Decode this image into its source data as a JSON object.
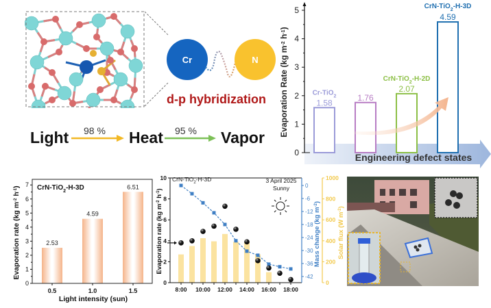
{
  "panel_a": {
    "atoms": {
      "metal_label": "Cr",
      "nonmetal_label": "N",
      "cr_color": "#1565c0",
      "n_color": "#f9c22e"
    },
    "hybridization_label": "d-p hybridization",
    "flow": {
      "step1": "Light",
      "eff1": "98 %",
      "step2": "Heat",
      "eff2": "95 %",
      "step3": "Vapor",
      "arrow1_color": "#f2b824",
      "arrow2_color": "#7cc057"
    }
  },
  "chart_data": [
    {
      "type": "bar",
      "title": "",
      "xlabel": "Engineering defect states",
      "ylabel": "Evaporation Rate (kg m⁻² h⁻¹)",
      "ylabel_main": "Evaporation Rate (kg m",
      "ylabel_sup1": "-2",
      "ylabel_mid": " h",
      "ylabel_sup2": "-1",
      "ylabel_end": ")",
      "ylim": [
        0,
        5
      ],
      "yticks": [
        "0",
        "1",
        "2",
        "3",
        "4",
        "5"
      ],
      "categories": [
        "Cr-TiO2",
        "",
        "CrN-TiO2-H-2D",
        "CrN-TiO2-H-3D"
      ],
      "category_labels": [
        {
          "pre": "Cr-TiO",
          "sub": "2",
          "post": ""
        },
        {
          "pre": "",
          "sub": "",
          "post": ""
        },
        {
          "pre": "CrN-TiO",
          "sub": "2",
          "post": "-H-2D"
        },
        {
          "pre": "CrN-TiO",
          "sub": "2",
          "post": "-H-3D"
        }
      ],
      "values": [
        1.58,
        1.76,
        2.07,
        4.59
      ],
      "value_labels": [
        "1.58",
        "1.76",
        "2.07",
        "4.59"
      ],
      "colors": [
        "#9a9ad8",
        "#b77cc4",
        "#8cbf45",
        "#1f6fb0"
      ],
      "grid": false
    },
    {
      "type": "bar",
      "title": "",
      "annotation": {
        "pre": "CrN-TiO",
        "sub": "2",
        "post": "-H-3D"
      },
      "xlabel": "Light intensity (sun)",
      "ylabel_main": "Evaporation rate (kg m",
      "ylabel_sup1": "-2",
      "ylabel_mid": " h",
      "ylabel_sup2": "-1",
      "ylabel_end": ")",
      "ylim": [
        0,
        7.4
      ],
      "yticks": [
        "0",
        "1",
        "2",
        "3",
        "4",
        "5",
        "6",
        "7"
      ],
      "categories": [
        "0.5",
        "1.0",
        "1.5"
      ],
      "values": [
        2.53,
        4.59,
        6.51
      ],
      "value_labels": [
        "2.53",
        "4.59",
        "6.51"
      ],
      "bar_color": "#f5b98e",
      "grid": false
    },
    {
      "type": "line",
      "title": "",
      "annotation": {
        "pre": "CrN-TiO",
        "sub": "2",
        "post": "-H-3D"
      },
      "date_label": "3 April 2025",
      "weather_label": "Sunny",
      "x": [
        "8:00",
        "9:00",
        "10:00",
        "11:00",
        "12:00",
        "13:00",
        "14:00",
        "15:00",
        "16:00",
        "17:00",
        "18:00"
      ],
      "xticks": [
        "8:00",
        "10:00",
        "12:00",
        "14:00",
        "16:00",
        "18:00"
      ],
      "ylabel_main": "Evaporation rate (kg m",
      "ylabel_sup1": "-2",
      "ylabel_mid": " h",
      "ylabel_sup2": "-1",
      "ylabel_end": ")",
      "ylim": [
        0,
        10
      ],
      "yticks": [
        "0",
        "2",
        "4",
        "6",
        "8",
        "10"
      ],
      "y2label_main": "Mass change (kg m",
      "y2label_sup": "-2",
      "y2label_end": ")",
      "y2lim": [
        -45,
        3
      ],
      "y2ticks": [
        "0",
        "-6",
        "-12",
        "-18",
        "-24",
        "-30",
        "-36",
        "-42"
      ],
      "y3label_main": "Solar flux (W m",
      "y3label_sup": "-2",
      "y3label_end": ")",
      "y3lim": [
        0,
        1000
      ],
      "y3ticks": [
        "0",
        "200",
        "400",
        "600",
        "800",
        "1000"
      ],
      "series": [
        {
          "name": "Evaporation rate",
          "axis": "left",
          "style": "scatter",
          "color": "#111111",
          "values": [
            3.8,
            4.0,
            4.9,
            5.4,
            7.3,
            5.1,
            3.9,
            2.1,
            1.4,
            0.9,
            0.3
          ]
        },
        {
          "name": "Mass change",
          "axis": "right",
          "style": "dashed-line",
          "color": "#3f7fc4",
          "values": [
            0,
            -3.8,
            -8,
            -12.6,
            -18,
            -25.5,
            -30.3,
            -32.2,
            -36.3,
            -37.5,
            -38.5
          ]
        },
        {
          "name": "Solar flux",
          "axis": "right-outer",
          "style": "bar",
          "color": "#fbe3a0",
          "values": [
            270,
            350,
            425,
            395,
            465,
            390,
            385,
            270,
            100,
            null,
            null
          ]
        }
      ],
      "grid": false
    }
  ],
  "photo": {
    "scene": "rooftop outdoor evaporation test"
  }
}
